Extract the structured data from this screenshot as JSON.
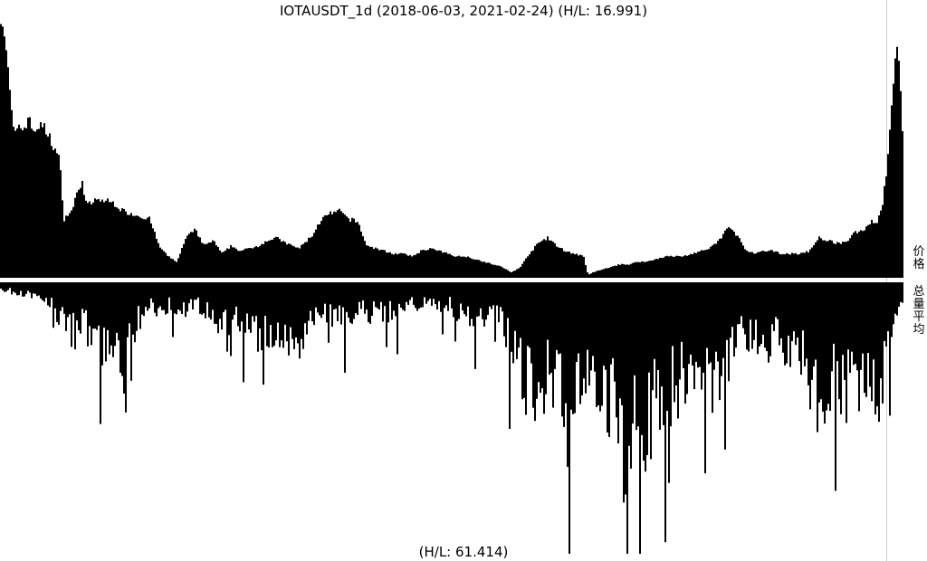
{
  "title": "IOTAUSDT_1d (2018-06-03, 2021-02-24) (H/L: 16.991)",
  "footer": "(H/L: 61.414)",
  "labels": {
    "price": "价格",
    "volume": "总量平均"
  },
  "chart_data": {
    "type": "area",
    "symbol": "IOTAUSDT",
    "interval": "1d",
    "date_range": [
      "2018-06-03",
      "2021-02-24"
    ],
    "colors": {
      "fill": "#000000",
      "background": "#ffffff",
      "frame": "#cccccc"
    },
    "panels": [
      {
        "name": "价格",
        "high_low_ratio": 16.991,
        "orientation": "up",
        "profile": [
          [
            0,
            0.99
          ],
          [
            0.3,
            0.95
          ],
          [
            0.6,
            0.85
          ],
          [
            0.9,
            0.73
          ],
          [
            1.2,
            0.62
          ],
          [
            1.5,
            0.52
          ],
          [
            2.0,
            0.58
          ],
          [
            2.5,
            0.55
          ],
          [
            3.0,
            0.6
          ],
          [
            3.6,
            0.55
          ],
          [
            4.2,
            0.57
          ],
          [
            4.8,
            0.56
          ],
          [
            5.5,
            0.52
          ],
          [
            6.0,
            0.48
          ],
          [
            6.5,
            0.44
          ],
          [
            7.0,
            0.22
          ],
          [
            7.5,
            0.24
          ],
          [
            8.0,
            0.26
          ],
          [
            8.5,
            0.33
          ],
          [
            9.0,
            0.36
          ],
          [
            9.5,
            0.27
          ],
          [
            10.5,
            0.29
          ],
          [
            11.5,
            0.29
          ],
          [
            12.5,
            0.28
          ],
          [
            13.5,
            0.25
          ],
          [
            14.5,
            0.24
          ],
          [
            15.5,
            0.23
          ],
          [
            16.5,
            0.22
          ],
          [
            17.5,
            0.12
          ],
          [
            18.5,
            0.08
          ],
          [
            19.5,
            0.06
          ],
          [
            20.5,
            0.15
          ],
          [
            21.5,
            0.18
          ],
          [
            22.5,
            0.12
          ],
          [
            23.5,
            0.14
          ],
          [
            24.5,
            0.09
          ],
          [
            25.5,
            0.12
          ],
          [
            26.5,
            0.1
          ],
          [
            27.5,
            0.11
          ],
          [
            28.5,
            0.12
          ],
          [
            29.5,
            0.14
          ],
          [
            30.5,
            0.15
          ],
          [
            31.5,
            0.13
          ],
          [
            33.0,
            0.11
          ],
          [
            34.5,
            0.16
          ],
          [
            35.5,
            0.22
          ],
          [
            36.5,
            0.24
          ],
          [
            37.5,
            0.25
          ],
          [
            38.5,
            0.22
          ],
          [
            39.5,
            0.21
          ],
          [
            40.5,
            0.12
          ],
          [
            41.5,
            0.11
          ],
          [
            42.5,
            0.1
          ],
          [
            43.5,
            0.09
          ],
          [
            44.5,
            0.09
          ],
          [
            45.5,
            0.08
          ],
          [
            46.5,
            0.1
          ],
          [
            47.5,
            0.11
          ],
          [
            48.5,
            0.1
          ],
          [
            49.5,
            0.09
          ],
          [
            50.5,
            0.08
          ],
          [
            51.5,
            0.08
          ],
          [
            52.5,
            0.07
          ],
          [
            53.5,
            0.06
          ],
          [
            54.5,
            0.05
          ],
          [
            55.5,
            0.04
          ],
          [
            56.5,
            0.02
          ],
          [
            57.5,
            0.04
          ],
          [
            58.5,
            0.09
          ],
          [
            59.5,
            0.13
          ],
          [
            60.5,
            0.15
          ],
          [
            61.5,
            0.12
          ],
          [
            62.5,
            0.1
          ],
          [
            63.5,
            0.09
          ],
          [
            64.5,
            0.08
          ],
          [
            65.0,
            0.01
          ],
          [
            65.5,
            0.02
          ],
          [
            66.5,
            0.03
          ],
          [
            67.5,
            0.04
          ],
          [
            68.5,
            0.05
          ],
          [
            69.5,
            0.05
          ],
          [
            70.5,
            0.06
          ],
          [
            71.5,
            0.06
          ],
          [
            72.5,
            0.07
          ],
          [
            73.5,
            0.08
          ],
          [
            74.5,
            0.08
          ],
          [
            75.5,
            0.08
          ],
          [
            76.5,
            0.09
          ],
          [
            77.5,
            0.1
          ],
          [
            78.5,
            0.11
          ],
          [
            79.5,
            0.14
          ],
          [
            80.5,
            0.19
          ],
          [
            81.5,
            0.16
          ],
          [
            82.5,
            0.1
          ],
          [
            83.5,
            0.09
          ],
          [
            84.5,
            0.1
          ],
          [
            85.5,
            0.1
          ],
          [
            86.5,
            0.09
          ],
          [
            87.5,
            0.09
          ],
          [
            88.5,
            0.09
          ],
          [
            89.5,
            0.1
          ],
          [
            90.5,
            0.15
          ],
          [
            91.5,
            0.14
          ],
          [
            92.5,
            0.13
          ],
          [
            93.5,
            0.13
          ],
          [
            94.5,
            0.17
          ],
          [
            95.5,
            0.18
          ],
          [
            96.3,
            0.21
          ],
          [
            97.0,
            0.21
          ],
          [
            97.6,
            0.28
          ],
          [
            98.2,
            0.45
          ],
          [
            98.8,
            0.72
          ],
          [
            99.2,
            0.88
          ],
          [
            99.5,
            0.8
          ],
          [
            99.8,
            0.55
          ],
          [
            100,
            0.45
          ]
        ]
      },
      {
        "name": "总量平均",
        "high_low_ratio": 61.414,
        "orientation": "down",
        "profile": [
          [
            0,
            0.03
          ],
          [
            2.0,
            0.04
          ],
          [
            4.0,
            0.05
          ],
          [
            5.5,
            0.08
          ],
          [
            7.0,
            0.16
          ],
          [
            8.0,
            0.2
          ],
          [
            9.0,
            0.17
          ],
          [
            10.0,
            0.19
          ],
          [
            11.5,
            0.26
          ],
          [
            13.0,
            0.24
          ],
          [
            13.8,
            0.4
          ],
          [
            14.5,
            0.19
          ],
          [
            15.5,
            0.13
          ],
          [
            17.0,
            0.1
          ],
          [
            18.5,
            0.09
          ],
          [
            20.0,
            0.11
          ],
          [
            21.5,
            0.09
          ],
          [
            23.0,
            0.13
          ],
          [
            24.5,
            0.16
          ],
          [
            26.0,
            0.15
          ],
          [
            27.5,
            0.2
          ],
          [
            29.0,
            0.22
          ],
          [
            30.5,
            0.19
          ],
          [
            32.0,
            0.23
          ],
          [
            33.0,
            0.3
          ],
          [
            34.0,
            0.17
          ],
          [
            36.0,
            0.12
          ],
          [
            38.0,
            0.16
          ],
          [
            40.0,
            0.11
          ],
          [
            42.0,
            0.13
          ],
          [
            44.0,
            0.12
          ],
          [
            46.0,
            0.09
          ],
          [
            48.0,
            0.08
          ],
          [
            50.0,
            0.1
          ],
          [
            52.0,
            0.16
          ],
          [
            54.0,
            0.12
          ],
          [
            55.5,
            0.14
          ],
          [
            56.5,
            0.3
          ],
          [
            57.5,
            0.36
          ],
          [
            58.5,
            0.42
          ],
          [
            59.5,
            0.45
          ],
          [
            60.5,
            0.38
          ],
          [
            61.5,
            0.4
          ],
          [
            62.5,
            0.55
          ],
          [
            63.5,
            0.48
          ],
          [
            64.5,
            0.4
          ],
          [
            65.5,
            0.36
          ],
          [
            66.5,
            0.44
          ],
          [
            67.5,
            0.48
          ],
          [
            68.5,
            0.6
          ],
          [
            69.5,
            0.7
          ],
          [
            70.5,
            0.58
          ],
          [
            71.5,
            0.55
          ],
          [
            72.5,
            0.48
          ],
          [
            73.5,
            0.44
          ],
          [
            74.5,
            0.4
          ],
          [
            75.5,
            0.38
          ],
          [
            76.5,
            0.33
          ],
          [
            77.5,
            0.36
          ],
          [
            78.5,
            0.4
          ],
          [
            79.5,
            0.34
          ],
          [
            80.5,
            0.3
          ],
          [
            81.5,
            0.24
          ],
          [
            82.5,
            0.2
          ],
          [
            83.5,
            0.22
          ],
          [
            84.5,
            0.26
          ],
          [
            85.5,
            0.22
          ],
          [
            86.5,
            0.24
          ],
          [
            87.5,
            0.24
          ],
          [
            88.5,
            0.3
          ],
          [
            89.5,
            0.38
          ],
          [
            90.5,
            0.44
          ],
          [
            91.5,
            0.4
          ],
          [
            92.5,
            0.36
          ],
          [
            93.5,
            0.4
          ],
          [
            94.5,
            0.45
          ],
          [
            95.5,
            0.42
          ],
          [
            96.5,
            0.4
          ],
          [
            97.5,
            0.45
          ],
          [
            98.5,
            0.2
          ],
          [
            99.3,
            0.12
          ],
          [
            100,
            0.1
          ]
        ]
      }
    ]
  }
}
